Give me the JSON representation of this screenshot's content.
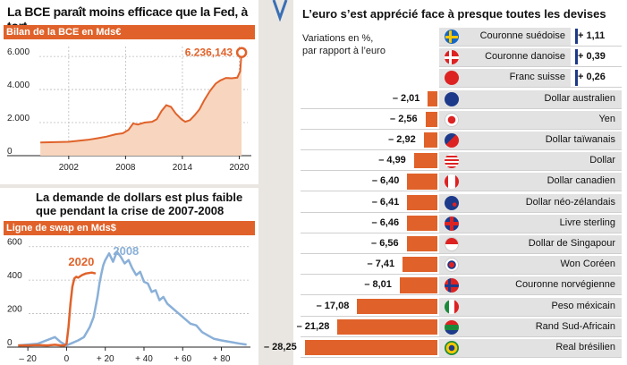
{
  "panel1": {
    "title": "La BCE paraît moins efficace que la Fed, à tort",
    "subtitle": "Bilan de la BCE en Mds€",
    "callout": "6.236,143"
  },
  "panel2": {
    "title_line1": "La demande de dollars est plus faible",
    "title_line2": "que pendant la crise de 2007-2008",
    "subtitle": "Ligne de swap en Mds$",
    "label_2020": "2020",
    "label_2008": "2008"
  },
  "panel3": {
    "title": "L’euro s’est apprécié face à presque toutes les devises",
    "note_line1": "Variations en %,",
    "note_line2": "par rapport à l’euro"
  },
  "colors": {
    "accent": "#e0622a",
    "fill": "#f8d5be",
    "blue": "#8ab0d8",
    "grid": "#bbbbbb"
  },
  "chart_data": [
    {
      "type": "area",
      "title": "La BCE paraît moins efficace que la Fed, à tort",
      "subtitle": "Bilan de la BCE en Mds€",
      "x_ticks": [
        "2002",
        "2008",
        "2014",
        "2020"
      ],
      "y_ticks": [
        "0",
        "2.000",
        "4.000",
        "6.000"
      ],
      "ylim": [
        0,
        6600
      ],
      "xlim": [
        1998.9,
        2020.9
      ],
      "x": [
        1999,
        2000,
        2001,
        2002,
        2003,
        2004,
        2005,
        2006,
        2007,
        2007.7,
        2008.3,
        2008.8,
        2009.3,
        2010,
        2010.8,
        2011.3,
        2011.8,
        2012.3,
        2012.8,
        2013.3,
        2013.9,
        2014.3,
        2014.8,
        2015.3,
        2015.8,
        2016.3,
        2016.9,
        2017.5,
        2018,
        2018.6,
        2019.2,
        2019.8,
        2020.1,
        2020.25
      ],
      "values": [
        800,
        810,
        820,
        840,
        900,
        960,
        1050,
        1150,
        1300,
        1350,
        1550,
        1950,
        1880,
        2000,
        2050,
        2200,
        2700,
        3050,
        2950,
        2550,
        2200,
        2050,
        2150,
        2450,
        2800,
        3350,
        3900,
        4350,
        4550,
        4700,
        4680,
        4720,
        5100,
        6236
      ],
      "annotation": "6.236,143"
    },
    {
      "type": "line",
      "title": "La demande de dollars est plus faible que pendant la crise de 2007-2008",
      "subtitle": "Ligne de swap en Mds$",
      "x_ticks": [
        "– 20",
        "0",
        "+ 20",
        "+ 40",
        "+ 60",
        "+ 80"
      ],
      "y_ticks": [
        "0",
        "200",
        "400",
        "600"
      ],
      "ylim": [
        0,
        620
      ],
      "xlim": [
        -27,
        95
      ],
      "series": [
        {
          "name": "2020",
          "x": [
            -25,
            -20,
            -15,
            -10,
            -6,
            -3,
            -1,
            0,
            1,
            2,
            3,
            4,
            5,
            6,
            8,
            10,
            13,
            15
          ],
          "values": [
            10,
            10,
            12,
            10,
            14,
            10,
            10,
            20,
            120,
            260,
            360,
            410,
            420,
            415,
            430,
            440,
            445,
            440
          ]
        },
        {
          "name": "2008",
          "x": [
            -25,
            -15,
            -6,
            -3,
            0,
            3,
            6,
            9,
            12,
            14,
            16,
            17,
            18,
            19,
            20,
            22,
            24,
            26,
            28,
            30,
            32,
            34,
            36,
            38,
            40,
            42,
            44,
            46,
            48,
            50,
            52,
            55,
            58,
            61,
            64,
            67,
            70,
            73,
            76,
            80,
            85,
            90,
            93
          ],
          "values": [
            10,
            20,
            60,
            30,
            10,
            25,
            40,
            60,
            120,
            180,
            300,
            380,
            440,
            490,
            520,
            560,
            510,
            570,
            540,
            500,
            520,
            470,
            430,
            450,
            390,
            380,
            330,
            340,
            280,
            300,
            260,
            230,
            200,
            170,
            140,
            130,
            90,
            70,
            50,
            40,
            30,
            20,
            15
          ]
        }
      ]
    },
    {
      "type": "bar",
      "title": "L’euro s’est apprécié face à presque toutes les devises",
      "ylabel": "Variations en %, par rapport à l’euro",
      "categories": [
        "Couronne suédoise",
        "Couronne danoise",
        "Franc suisse",
        "Dollar australien",
        "Yen",
        "Dollar taïwanais",
        "Dollar",
        "Dollar canadien",
        "Dollar néo-zélandais",
        "Livre sterling",
        "Dollar de Singapour",
        "Won Coréen",
        "Couronne norvégienne",
        "Peso méxicain",
        "Rand Sud-Africain",
        "Real brésilien"
      ],
      "values": [
        1.11,
        0.39,
        0.26,
        -2.01,
        -2.56,
        -2.92,
        -4.99,
        -6.4,
        -6.41,
        -6.46,
        -6.56,
        -7.41,
        -8.01,
        -17.08,
        -21.28,
        -28.25
      ],
      "labels": [
        "+ 1,11",
        "+ 0,39",
        "+ 0,26",
        "– 2,01",
        "– 2,56",
        "– 2,92",
        "– 4,99",
        "– 6,40",
        "– 6,41",
        "– 6,46",
        "– 6,56",
        "– 7,41",
        "– 8,01",
        "– 17,08",
        "– 21,28",
        "– 28,25"
      ],
      "flags": [
        "flag-se-icon",
        "flag-dk-icon",
        "flag-ch-icon",
        "flag-au-icon",
        "flag-jp-icon",
        "flag-tw-icon",
        "flag-us-icon",
        "flag-ca-icon",
        "flag-nz-icon",
        "flag-gb-icon",
        "flag-sg-icon",
        "flag-kr-icon",
        "flag-no-icon",
        "flag-mx-icon",
        "flag-za-icon",
        "flag-br-icon"
      ]
    }
  ]
}
